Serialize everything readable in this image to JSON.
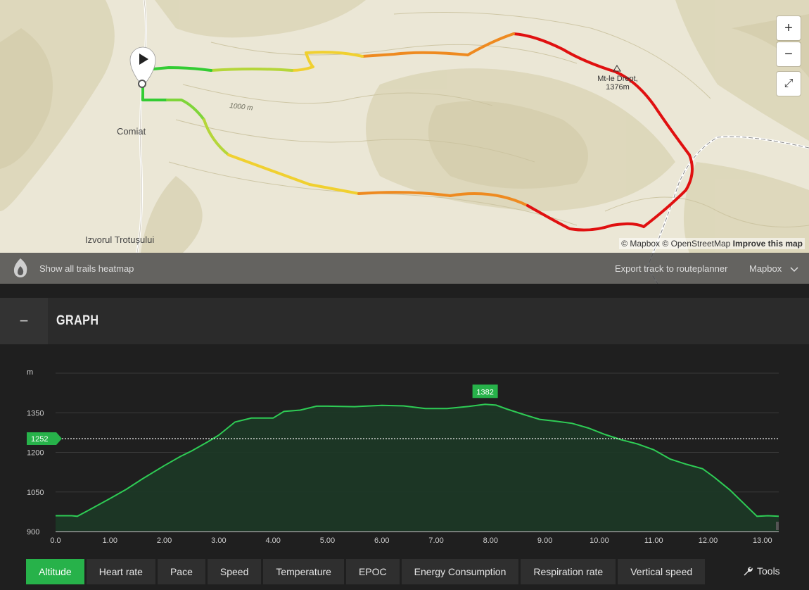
{
  "map": {
    "places": {
      "comiat": "Comiat",
      "izvorul": "Izvorul Trotușului"
    },
    "peak": {
      "name": "Mt-le Drept,",
      "elevation": "1376m"
    },
    "contour_label": "1000 m",
    "controls": {
      "zoom_in": "+",
      "zoom_out": "−",
      "fullscreen": "⤢"
    },
    "attribution": {
      "mapbox": "© Mapbox",
      "osm": "© OpenStreetMap",
      "improve": "Improve this map"
    },
    "bar": {
      "heatmap": "Show all trails heatmap",
      "export": "Export track to routeplanner",
      "layer": "Mapbox"
    },
    "route_colors": [
      "#33cc33",
      "#a6d63a",
      "#f0d030",
      "#ee8a20",
      "#e01010"
    ]
  },
  "graph": {
    "collapse_label": "−",
    "title": "GRAPH",
    "tabs": [
      "Altitude",
      "Heart rate",
      "Pace",
      "Speed",
      "Temperature",
      "EPOC",
      "Energy Consumption",
      "Respiration rate",
      "Vertical speed"
    ],
    "active_tab": "Altitude",
    "tools_label": "Tools"
  },
  "chart_data": {
    "type": "area",
    "ylabel": "m",
    "ylim": [
      900,
      1500
    ],
    "yticks": [
      900,
      1050,
      1200,
      1350
    ],
    "xlim": [
      0,
      13.3
    ],
    "xticks": [
      "0.0",
      "1.00",
      "2.00",
      "3.00",
      "4.00",
      "5.00",
      "6.00",
      "7.00",
      "8.00",
      "9.00",
      "10.00",
      "11.00",
      "12.00",
      "13.00"
    ],
    "average": 1252,
    "average_label": "1252",
    "max_label": "1382",
    "line_color": "#2ecc55",
    "x": [
      0.0,
      0.3,
      0.4,
      0.6,
      1.0,
      1.3,
      1.6,
      2.0,
      2.3,
      2.5,
      2.8,
      3.0,
      3.3,
      3.6,
      4.0,
      4.2,
      4.5,
      4.8,
      5.0,
      5.5,
      6.0,
      6.4,
      6.8,
      7.2,
      7.6,
      7.9,
      8.1,
      8.3,
      8.6,
      8.9,
      9.2,
      9.5,
      9.8,
      10.1,
      10.4,
      10.7,
      11.0,
      11.3,
      11.6,
      11.9,
      12.1,
      12.4,
      12.7,
      12.9,
      13.1,
      13.3
    ],
    "y": [
      960,
      960,
      958,
      980,
      1025,
      1060,
      1100,
      1150,
      1185,
      1205,
      1240,
      1265,
      1315,
      1330,
      1330,
      1355,
      1360,
      1375,
      1375,
      1373,
      1378,
      1376,
      1366,
      1366,
      1374,
      1382,
      1379,
      1364,
      1344,
      1325,
      1318,
      1310,
      1292,
      1268,
      1248,
      1232,
      1210,
      1175,
      1155,
      1138,
      1108,
      1058,
      998,
      958,
      960,
      958
    ]
  }
}
